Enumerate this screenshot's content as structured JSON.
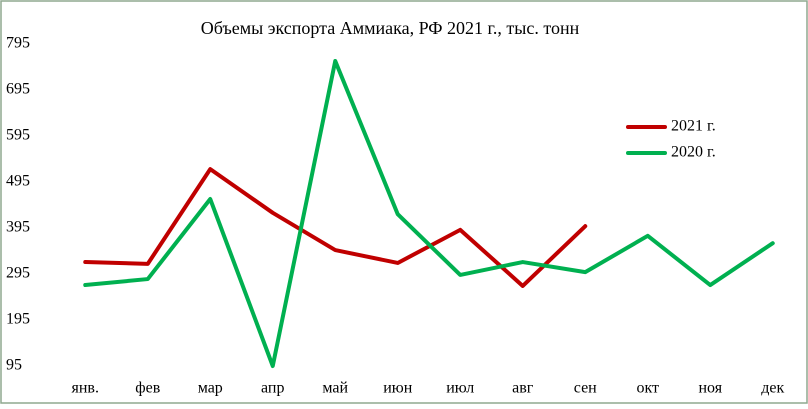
{
  "chart_data": {
    "type": "line",
    "title": "Объемы экспорта Аммиака, РФ 2021 г., тыс. тонн",
    "categories": [
      "янв.",
      "фев",
      "мар",
      "апр",
      "май",
      "июн",
      "июл",
      "авг",
      "сен",
      "окт",
      "ноя",
      "дек"
    ],
    "series": [
      {
        "name": "2021 г.",
        "color": "#c00000",
        "values": [
          321,
          317,
          523,
          428,
          347,
          319,
          391,
          269,
          399,
          null,
          null,
          null
        ]
      },
      {
        "name": "2020 г.",
        "color": "#00b050",
        "values": [
          271,
          284,
          458,
          95,
          758,
          425,
          293,
          321,
          299,
          378,
          271,
          362
        ]
      }
    ],
    "ylim": [
      95,
      795
    ],
    "yticks": [
      95,
      195,
      295,
      395,
      495,
      595,
      695,
      795
    ],
    "grid": false,
    "legend": "right"
  }
}
